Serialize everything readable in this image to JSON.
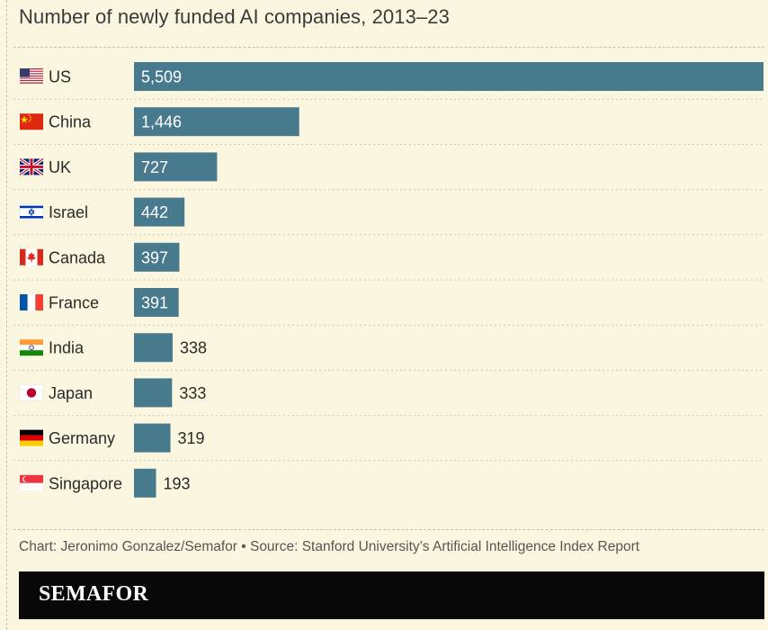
{
  "title": "Number of newly funded AI companies, 2013–23",
  "source": "Chart: Jeronimo Gonzalez/Semafor • Source: Stanford University’s Artificial Intelligence Index Report",
  "brand": "SEMAFOR",
  "colors": {
    "bar": "#487a8e",
    "background": "#fbf6df",
    "brand_bar": "#080808"
  },
  "chart_data": {
    "type": "bar",
    "orientation": "horizontal",
    "title": "Number of newly funded AI companies, 2013–23",
    "xlabel": "",
    "ylabel": "",
    "xlim": [
      0,
      5509
    ],
    "grid": false,
    "legend": "none",
    "categories": [
      "US",
      "China",
      "UK",
      "Israel",
      "Canada",
      "France",
      "India",
      "Japan",
      "Germany",
      "Singapore"
    ],
    "values": [
      5509,
      1446,
      727,
      442,
      397,
      391,
      338,
      333,
      319,
      193
    ],
    "value_labels": [
      "5,509",
      "1,446",
      "727",
      "442",
      "397",
      "391",
      "338",
      "333",
      "319",
      "193"
    ],
    "flag_icons": [
      "us-flag-icon",
      "china-flag-icon",
      "uk-flag-icon",
      "israel-flag-icon",
      "canada-flag-icon",
      "france-flag-icon",
      "india-flag-icon",
      "japan-flag-icon",
      "germany-flag-icon",
      "singapore-flag-icon"
    ]
  }
}
